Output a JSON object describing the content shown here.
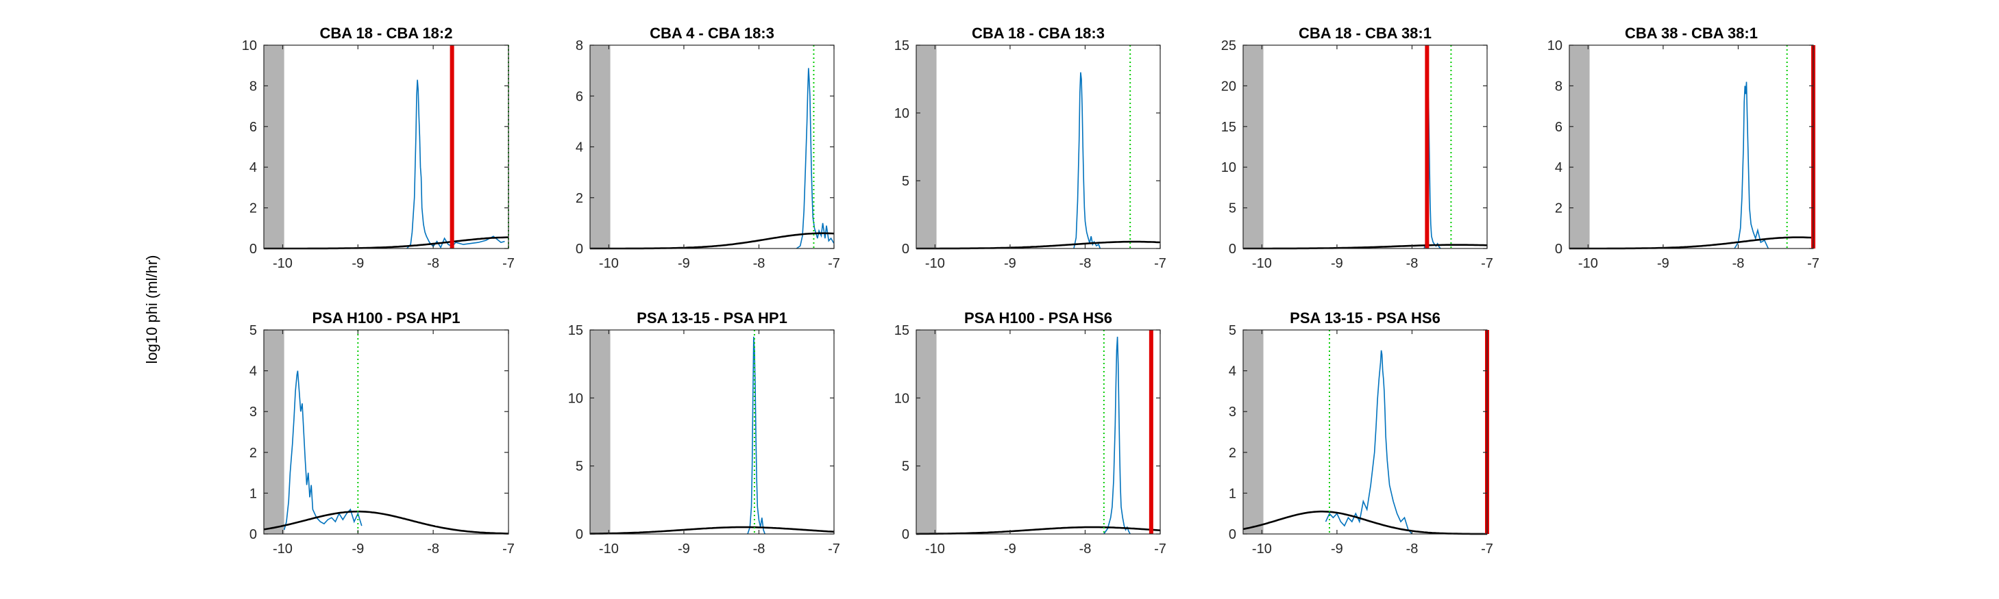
{
  "figure": {
    "ylabel": "log10 phi (ml/hr)"
  },
  "colors": {
    "histogram": "#0072BD",
    "prior_curve": "#000000",
    "true_value_line": "#E00000",
    "estimate_line": "#00CC00",
    "excluded_region": "#B3B3B3"
  },
  "chart_data": [
    {
      "type": "line",
      "title": "CBA 18 - CBA 18:2",
      "xlim": [
        -10.25,
        -7
      ],
      "ylim": [
        0,
        10
      ],
      "xticks": [
        -10,
        -9,
        -8,
        -7
      ],
      "yticks": [
        0,
        2,
        4,
        6,
        8,
        10
      ],
      "shaded_x": [
        -10.25,
        -9.98
      ],
      "vline_red": -7.75,
      "vline_green": -7.0,
      "series": [
        {
          "x": [
            -8.35,
            -8.3,
            -8.28,
            -8.25,
            -8.23,
            -8.22,
            -8.21,
            -8.2,
            -8.19,
            -8.18,
            -8.17,
            -8.16,
            -8.15,
            -8.13,
            -8.11,
            -8.09,
            -8.05,
            -8.0,
            -7.95,
            -7.9,
            -7.85,
            -7.8,
            -7.75,
            -7.7,
            -7.6,
            -7.5,
            -7.4,
            -7.3,
            -7.2,
            -7.1,
            -7.05
          ],
          "y": [
            0,
            0.2,
            0.8,
            2.5,
            5.5,
            7.5,
            8.3,
            7.8,
            6.5,
            5.5,
            4.0,
            3.5,
            2.0,
            1.2,
            0.8,
            0.6,
            0.3,
            0.1,
            0.35,
            0.05,
            0.5,
            0.2,
            0.1,
            0.3,
            0.2,
            0.25,
            0.3,
            0.4,
            0.6,
            0.3,
            0.35
          ]
        }
      ],
      "prior": {
        "mu": -6.95,
        "sigma": 0.8,
        "peak": 0.55
      }
    },
    {
      "type": "line",
      "title": "CBA 4 - CBA 18:3",
      "xlim": [
        -10.25,
        -7
      ],
      "ylim": [
        0,
        8
      ],
      "xticks": [
        -10,
        -9,
        -8,
        -7
      ],
      "yticks": [
        0,
        2,
        4,
        6,
        8
      ],
      "shaded_x": [
        -10.25,
        -9.98
      ],
      "vline_red": null,
      "vline_green": -7.27,
      "series": [
        {
          "x": [
            -7.5,
            -7.45,
            -7.42,
            -7.4,
            -7.38,
            -7.36,
            -7.35,
            -7.34,
            -7.33,
            -7.32,
            -7.31,
            -7.3,
            -7.29,
            -7.28,
            -7.26,
            -7.24,
            -7.22,
            -7.2,
            -7.17,
            -7.15,
            -7.12,
            -7.1,
            -7.07,
            -7.04,
            -7.0
          ],
          "y": [
            0,
            0.1,
            0.5,
            1.5,
            3.2,
            5.0,
            6.2,
            7.1,
            6.6,
            6.0,
            4.5,
            3.0,
            2.0,
            1.2,
            0.8,
            0.6,
            0.4,
            0.7,
            0.5,
            1.0,
            0.4,
            0.9,
            0.3,
            0.4,
            0.2
          ]
        }
      ],
      "prior": {
        "mu": -7.15,
        "sigma": 0.75,
        "peak": 0.6
      }
    },
    {
      "type": "line",
      "title": "CBA 18 - CBA 18:3",
      "xlim": [
        -10.25,
        -7
      ],
      "ylim": [
        0,
        15
      ],
      "xticks": [
        -10,
        -9,
        -8,
        -7
      ],
      "yticks": [
        0,
        5,
        10,
        15
      ],
      "shaded_x": [
        -10.25,
        -9.98
      ],
      "vline_red": null,
      "vline_green": -7.4,
      "series": [
        {
          "x": [
            -8.15,
            -8.12,
            -8.1,
            -8.08,
            -8.07,
            -8.06,
            -8.05,
            -8.04,
            -8.03,
            -8.02,
            -8.01,
            -8.0,
            -7.98,
            -7.96,
            -7.94,
            -7.92,
            -7.9,
            -7.88,
            -7.85,
            -7.82,
            -7.8
          ],
          "y": [
            0,
            0.8,
            3.5,
            8.0,
            11.5,
            13.0,
            12.5,
            10.5,
            7.5,
            5.0,
            3.0,
            2.0,
            1.2,
            0.8,
            0.4,
            0.9,
            0.3,
            0.5,
            0.2,
            0.3,
            0
          ]
        }
      ],
      "prior": {
        "mu": -7.35,
        "sigma": 0.8,
        "peak": 0.5
      }
    },
    {
      "type": "line",
      "title": "CBA 18 - CBA 38:1",
      "xlim": [
        -10.25,
        -7
      ],
      "ylim": [
        0,
        25
      ],
      "xticks": [
        -10,
        -9,
        -8,
        -7
      ],
      "yticks": [
        0,
        5,
        10,
        15,
        20,
        25
      ],
      "shaded_x": [
        -10.25,
        -9.98
      ],
      "vline_red": -7.8,
      "vline_green": -7.48,
      "series": [
        {
          "x": [
            -7.84,
            -7.82,
            -7.81,
            -7.8,
            -7.79,
            -7.78,
            -7.77,
            -7.76,
            -7.75,
            -7.74,
            -7.72,
            -7.7,
            -7.68,
            -7.66,
            -7.64,
            -7.62
          ],
          "y": [
            0,
            0.5,
            4.0,
            12.0,
            20.0,
            18.0,
            12.0,
            6.0,
            3.0,
            1.5,
            0.8,
            0.5,
            0.3,
            0.6,
            0.2,
            0
          ]
        }
      ],
      "prior": {
        "mu": -7.4,
        "sigma": 0.8,
        "peak": 0.45
      }
    },
    {
      "type": "line",
      "title": "CBA 38 - CBA 38:1",
      "xlim": [
        -10.25,
        -7
      ],
      "ylim": [
        0,
        10
      ],
      "xticks": [
        -10,
        -9,
        -8,
        -7
      ],
      "yticks": [
        0,
        2,
        4,
        6,
        8,
        10
      ],
      "shaded_x": [
        -10.25,
        -9.98
      ],
      "vline_red": -7.0,
      "vline_green": -7.35,
      "series": [
        {
          "x": [
            -8.05,
            -8.0,
            -7.97,
            -7.95,
            -7.93,
            -7.92,
            -7.91,
            -7.9,
            -7.89,
            -7.88,
            -7.87,
            -7.86,
            -7.85,
            -7.83,
            -7.8,
            -7.77,
            -7.74,
            -7.7,
            -7.65,
            -7.6
          ],
          "y": [
            0,
            0.3,
            1.0,
            2.5,
            5.0,
            7.2,
            8.0,
            7.6,
            8.2,
            6.5,
            5.0,
            3.5,
            2.0,
            1.2,
            0.8,
            0.5,
            0.9,
            0.3,
            0.4,
            0
          ]
        }
      ],
      "prior": {
        "mu": -7.2,
        "sigma": 0.75,
        "peak": 0.55
      }
    },
    {
      "type": "line",
      "title": "PSA H100 - PSA HP1",
      "xlim": [
        -10.25,
        -7
      ],
      "ylim": [
        0,
        5
      ],
      "xticks": [
        -10,
        -9,
        -8,
        -7
      ],
      "yticks": [
        0,
        1,
        2,
        3,
        4,
        5
      ],
      "shaded_x": [
        -10.25,
        -9.98
      ],
      "vline_red": null,
      "vline_green": -9.0,
      "series": [
        {
          "x": [
            -9.98,
            -9.95,
            -9.92,
            -9.9,
            -9.87,
            -9.85,
            -9.83,
            -9.81,
            -9.8,
            -9.78,
            -9.76,
            -9.74,
            -9.72,
            -9.7,
            -9.68,
            -9.66,
            -9.64,
            -9.62,
            -9.6,
            -9.55,
            -9.5,
            -9.45,
            -9.4,
            -9.35,
            -9.3,
            -9.25,
            -9.2,
            -9.15,
            -9.1,
            -9.05,
            -9.0,
            -8.95
          ],
          "y": [
            0.1,
            0.3,
            0.8,
            1.5,
            2.2,
            2.8,
            3.5,
            3.9,
            4.0,
            3.5,
            3.0,
            3.2,
            2.5,
            1.8,
            1.2,
            1.5,
            0.9,
            1.2,
            0.6,
            0.4,
            0.3,
            0.25,
            0.35,
            0.4,
            0.3,
            0.5,
            0.35,
            0.5,
            0.6,
            0.3,
            0.5,
            0.2
          ]
        }
      ],
      "prior": {
        "mu": -9.0,
        "sigma": 0.7,
        "peak": 0.55
      }
    },
    {
      "type": "line",
      "title": "PSA 13-15 - PSA HP1",
      "xlim": [
        -10.25,
        -7
      ],
      "ylim": [
        0,
        15
      ],
      "xticks": [
        -10,
        -9,
        -8,
        -7
      ],
      "yticks": [
        0,
        5,
        10,
        15
      ],
      "shaded_x": [
        -10.25,
        -9.98
      ],
      "vline_red": null,
      "vline_green": -8.06,
      "series": [
        {
          "x": [
            -8.15,
            -8.12,
            -8.1,
            -8.09,
            -8.08,
            -8.07,
            -8.06,
            -8.05,
            -8.04,
            -8.03,
            -8.02,
            -8.0,
            -7.98,
            -7.96,
            -7.94,
            -7.92
          ],
          "y": [
            0,
            0.5,
            2.0,
            5.0,
            10.0,
            14.5,
            13.5,
            11.0,
            7.0,
            4.0,
            2.0,
            1.0,
            0.5,
            1.2,
            0.3,
            0
          ]
        }
      ],
      "prior": {
        "mu": -8.2,
        "sigma": 0.8,
        "peak": 0.5
      }
    },
    {
      "type": "line",
      "title": "PSA H100 - PSA HS6",
      "xlim": [
        -10.25,
        -7
      ],
      "ylim": [
        0,
        15
      ],
      "xticks": [
        -10,
        -9,
        -8,
        -7
      ],
      "yticks": [
        0,
        5,
        10,
        15
      ],
      "shaded_x": [
        -10.25,
        -9.98
      ],
      "vline_red": -7.12,
      "vline_green": -7.75,
      "series": [
        {
          "x": [
            -7.75,
            -7.7,
            -7.66,
            -7.64,
            -7.62,
            -7.6,
            -7.59,
            -7.58,
            -7.57,
            -7.56,
            -7.55,
            -7.54,
            -7.53,
            -7.52,
            -7.5,
            -7.48,
            -7.46,
            -7.44,
            -7.42,
            -7.4
          ],
          "y": [
            0,
            0.4,
            1.2,
            2.0,
            4.0,
            8.0,
            11.0,
            13.5,
            14.5,
            12.5,
            9.0,
            6.0,
            3.5,
            2.0,
            1.2,
            0.6,
            0.3,
            0.5,
            0.2,
            0
          ]
        }
      ],
      "prior": {
        "mu": -7.9,
        "sigma": 0.8,
        "peak": 0.5
      }
    },
    {
      "type": "line",
      "title": "PSA 13-15 - PSA HS6",
      "xlim": [
        -10.25,
        -7
      ],
      "ylim": [
        0,
        5
      ],
      "xticks": [
        -10,
        -9,
        -8,
        -7
      ],
      "yticks": [
        0,
        1,
        2,
        3,
        4,
        5
      ],
      "shaded_x": [
        -10.25,
        -9.98
      ],
      "vline_red": -7.0,
      "vline_green": -9.1,
      "series": [
        {
          "x": [
            -9.15,
            -9.1,
            -9.05,
            -9.0,
            -8.95,
            -8.9,
            -8.85,
            -8.8,
            -8.75,
            -8.7,
            -8.65,
            -8.6,
            -8.55,
            -8.5,
            -8.48,
            -8.46,
            -8.44,
            -8.42,
            -8.41,
            -8.4,
            -8.39,
            -8.38,
            -8.37,
            -8.36,
            -8.35,
            -8.33,
            -8.3,
            -8.25,
            -8.2,
            -8.15,
            -8.1,
            -8.05,
            -8.0
          ],
          "y": [
            0.3,
            0.5,
            0.4,
            0.5,
            0.3,
            0.2,
            0.4,
            0.3,
            0.5,
            0.3,
            0.8,
            0.6,
            1.2,
            2.0,
            2.6,
            3.3,
            3.8,
            4.2,
            4.5,
            4.4,
            4.0,
            3.8,
            3.5,
            3.0,
            2.4,
            1.8,
            1.2,
            0.8,
            0.5,
            0.3,
            0.4,
            0.1,
            0
          ]
        }
      ],
      "prior": {
        "mu": -9.2,
        "sigma": 0.6,
        "peak": 0.55
      }
    }
  ]
}
